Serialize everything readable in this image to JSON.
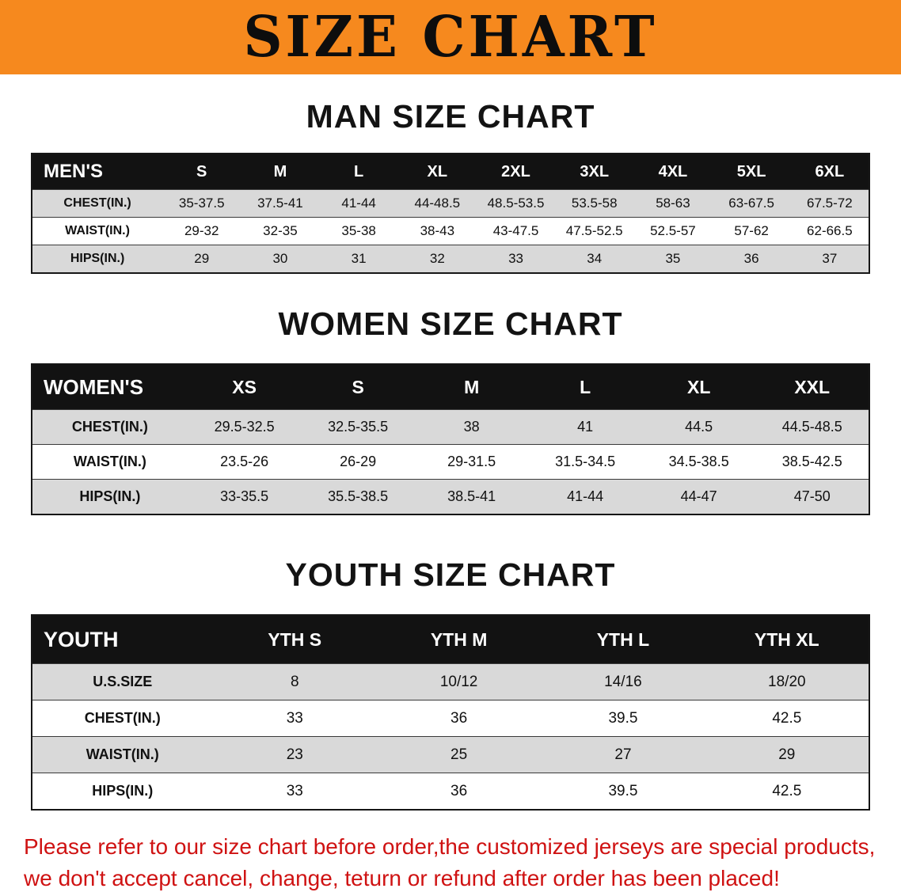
{
  "banner": {
    "title": "SIZE CHART"
  },
  "colors": {
    "banner_bg": "#f6891e",
    "table_header_bg": "#121212",
    "row_stripe": "#d9d9d9",
    "footer_text": "#cf1212"
  },
  "chart_data": [
    {
      "type": "table",
      "title": "MAN SIZE CHART",
      "header_label": "MEN'S",
      "columns": [
        "S",
        "M",
        "L",
        "XL",
        "2XL",
        "3XL",
        "4XL",
        "5XL",
        "6XL"
      ],
      "rows": [
        {
          "label": "CHEST(IN.)",
          "values": [
            "35-37.5",
            "37.5-41",
            "41-44",
            "44-48.5",
            "48.5-53.5",
            "53.5-58",
            "58-63",
            "63-67.5",
            "67.5-72"
          ]
        },
        {
          "label": "WAIST(IN.)",
          "values": [
            "29-32",
            "32-35",
            "35-38",
            "38-43",
            "43-47.5",
            "47.5-52.5",
            "52.5-57",
            "57-62",
            "62-66.5"
          ]
        },
        {
          "label": "HIPS(IN.)",
          "values": [
            "29",
            "30",
            "31",
            "32",
            "33",
            "34",
            "35",
            "36",
            "37"
          ]
        }
      ]
    },
    {
      "type": "table",
      "title": "WOMEN SIZE CHART",
      "header_label": "WOMEN'S",
      "columns": [
        "XS",
        "S",
        "M",
        "L",
        "XL",
        "XXL"
      ],
      "rows": [
        {
          "label": "CHEST(IN.)",
          "values": [
            "29.5-32.5",
            "32.5-35.5",
            "38",
            "41",
            "44.5",
            "44.5-48.5"
          ]
        },
        {
          "label": "WAIST(IN.)",
          "values": [
            "23.5-26",
            "26-29",
            "29-31.5",
            "31.5-34.5",
            "34.5-38.5",
            "38.5-42.5"
          ]
        },
        {
          "label": "HIPS(IN.)",
          "values": [
            "33-35.5",
            "35.5-38.5",
            "38.5-41",
            "41-44",
            "44-47",
            "47-50"
          ]
        }
      ]
    },
    {
      "type": "table",
      "title": "YOUTH SIZE CHART",
      "header_label": "YOUTH",
      "columns": [
        "YTH S",
        "YTH M",
        "YTH L",
        "YTH XL"
      ],
      "rows": [
        {
          "label": "U.S.SIZE",
          "values": [
            "8",
            "10/12",
            "14/16",
            "18/20"
          ]
        },
        {
          "label": "CHEST(IN.)",
          "values": [
            "33",
            "36",
            "39.5",
            "42.5"
          ]
        },
        {
          "label": "WAIST(IN.)",
          "values": [
            "23",
            "25",
            "27",
            "29"
          ]
        },
        {
          "label": "HIPS(IN.)",
          "values": [
            "33",
            "36",
            "39.5",
            "42.5"
          ]
        }
      ]
    }
  ],
  "footer": {
    "line1": "Please refer to our size chart before order,the customized jerseys are special products,",
    "line2": "we don't accept cancel, change, teturn or refund after order has been placed!"
  }
}
